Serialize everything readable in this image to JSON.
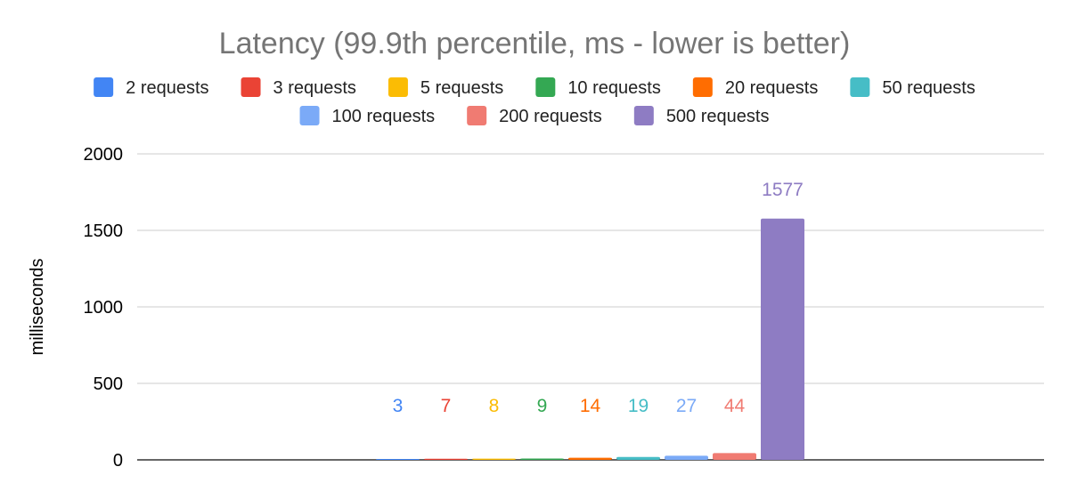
{
  "chart_data": {
    "type": "bar",
    "title": "Latency (99.9th percentile, ms - lower is better)",
    "ylabel": "milliseconds",
    "xlabel": "",
    "ylim": [
      0,
      2000
    ],
    "yticks": [
      0,
      500,
      1000,
      1500,
      2000
    ],
    "grid": true,
    "legend_position": "top",
    "series": [
      {
        "name": "2 requests",
        "value": 3,
        "label": "3",
        "color": "#4285F4"
      },
      {
        "name": "3 requests",
        "value": 7,
        "label": "7",
        "color": "#EA4335"
      },
      {
        "name": "5 requests",
        "value": 8,
        "label": "8",
        "color": "#FBBC04"
      },
      {
        "name": "10 requests",
        "value": 9,
        "label": "9",
        "color": "#34A853"
      },
      {
        "name": "20 requests",
        "value": 14,
        "label": "14",
        "color": "#FF6D01"
      },
      {
        "name": "50 requests",
        "value": 19,
        "label": "19",
        "color": "#46BDC6"
      },
      {
        "name": "100 requests",
        "value": 27,
        "label": "27",
        "color": "#7BAAF7"
      },
      {
        "name": "200 requests",
        "value": 44,
        "label": "44",
        "color": "#F07B72"
      },
      {
        "name": "500 requests",
        "value": 1577,
        "label": "1577",
        "color": "#8E7CC3"
      }
    ]
  }
}
